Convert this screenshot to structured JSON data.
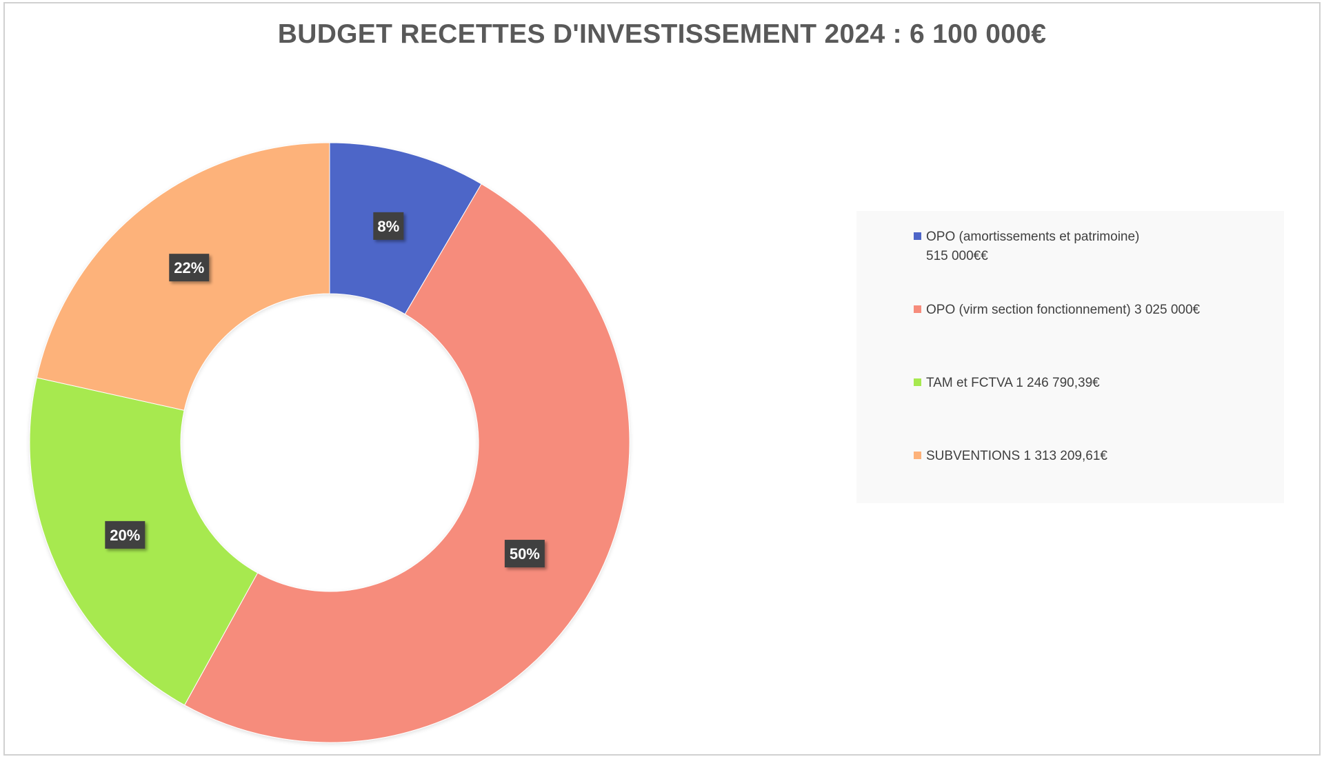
{
  "chart_data": {
    "type": "pie",
    "donut": true,
    "title": "BUDGET RECETTES D'INVESTISSEMENT 2024 : 6 100 000€",
    "categories": [
      "OPO (amortissements et patrimoine)\n515 000€€",
      "OPO (virm section fonctionnement) 3 025 000€",
      "TAM et FCTVA 1 246 790,39€",
      "SUBVENTIONS 1 313 209,61€"
    ],
    "values": [
      515000,
      3025000,
      1246790.39,
      1313209.61
    ],
    "data_labels": [
      "8%",
      "50%",
      "20%",
      "22%"
    ],
    "colors": [
      "#4e66c8",
      "#f68c7c",
      "#a7e94f",
      "#fdb27a"
    ],
    "legend_position": "right"
  }
}
